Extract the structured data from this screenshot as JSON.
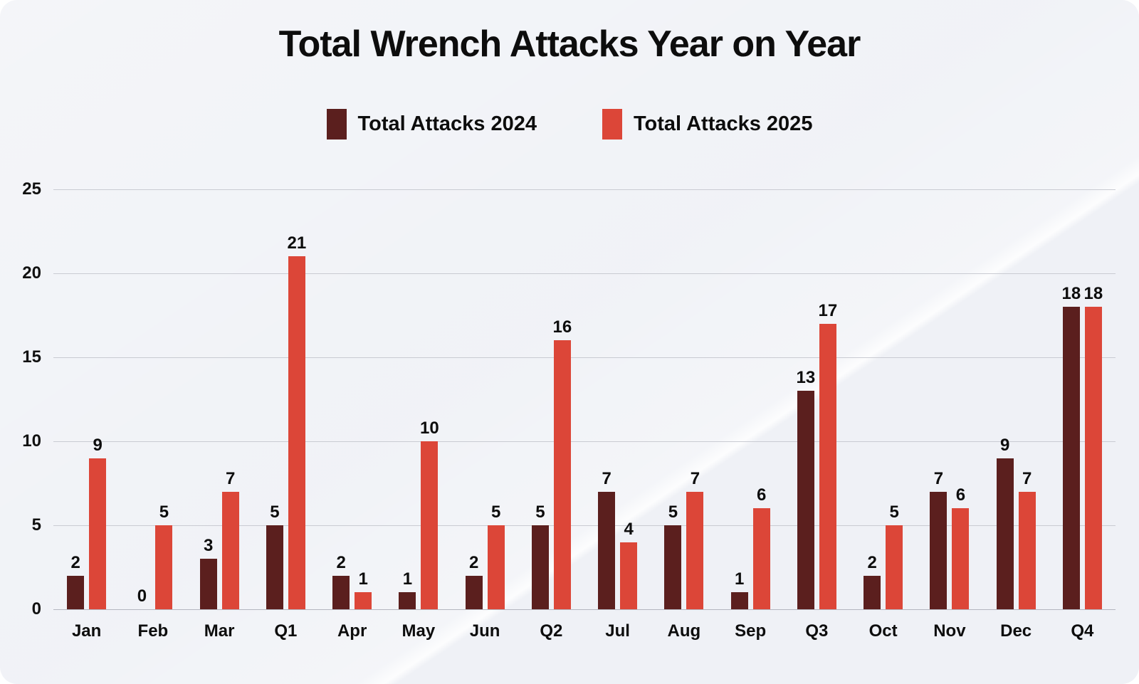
{
  "colors": {
    "card_background": "#eff1f6",
    "grid": "#c9cbd2",
    "baseline": "#b4b6bf",
    "text": "#0d0d0d",
    "series_2024": "#5B1F1E",
    "series_2025": "#DC4638"
  },
  "chart_data": {
    "type": "bar",
    "title": "Total Wrench Attacks Year on Year",
    "xlabel": "",
    "ylabel": "",
    "categories": [
      "Jan",
      "Feb",
      "Mar",
      "Q1",
      "Apr",
      "May",
      "Jun",
      "Q2",
      "Jul",
      "Aug",
      "Sep",
      "Q3",
      "Oct",
      "Nov",
      "Dec",
      "Q4"
    ],
    "series": [
      {
        "name": "Total Attacks 2024",
        "color": "#5B1F1E",
        "values": [
          2,
          0,
          3,
          5,
          2,
          1,
          2,
          5,
          7,
          5,
          1,
          13,
          2,
          7,
          9,
          18
        ]
      },
      {
        "name": "Total Attacks 2025",
        "color": "#DC4638",
        "values": [
          9,
          5,
          7,
          21,
          1,
          10,
          5,
          16,
          4,
          7,
          6,
          17,
          5,
          6,
          7,
          18
        ]
      }
    ],
    "ylim": [
      0,
      25
    ],
    "yticks": [
      0,
      5,
      10,
      15,
      20,
      25
    ],
    "grid": true,
    "legend_position": "top-center",
    "value_labels": true
  }
}
